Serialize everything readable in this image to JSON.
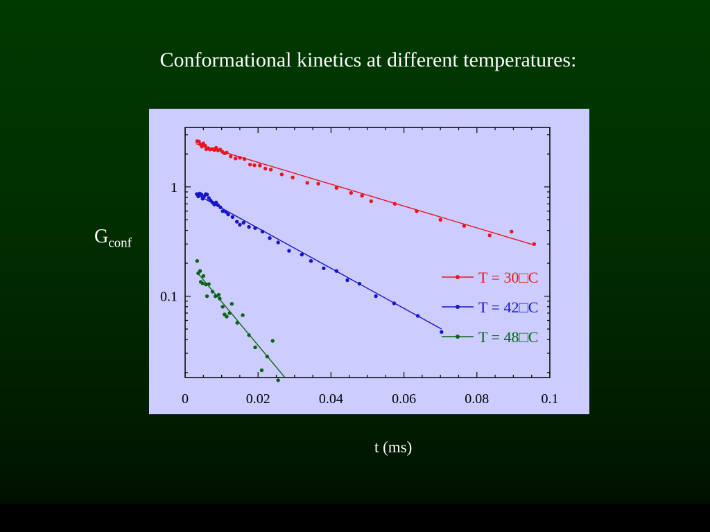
{
  "slide": {
    "title": "Conformational kinetics at different temperatures:"
  },
  "chart_data": {
    "type": "scatter",
    "title": "",
    "xlabel": "t (ms)",
    "ylabel": {
      "main": "G",
      "sub": "conf"
    },
    "xlim": [
      0,
      0.1
    ],
    "ylim": [
      0.018,
      3.5
    ],
    "yscale": "log",
    "x_ticks": [
      {
        "value": 0,
        "label": "0"
      },
      {
        "value": 0.02,
        "label": "0.02"
      },
      {
        "value": 0.04,
        "label": "0.04"
      },
      {
        "value": 0.06,
        "label": "0.06"
      },
      {
        "value": 0.08,
        "label": "0.08"
      },
      {
        "value": 0.1,
        "label": "0.1"
      }
    ],
    "y_ticks": [
      {
        "value": 0.1,
        "label": "0.1"
      },
      {
        "value": 1,
        "label": "1"
      }
    ],
    "grid": false,
    "legend_position": "right",
    "series": [
      {
        "name": "T = 30□C",
        "color": "#e8141e",
        "points": [
          [
            0.0033,
            2.62
          ],
          [
            0.0038,
            2.6
          ],
          [
            0.0042,
            2.45
          ],
          [
            0.0046,
            2.34
          ],
          [
            0.005,
            2.5
          ],
          [
            0.0055,
            2.38
          ],
          [
            0.0058,
            2.22
          ],
          [
            0.0063,
            2.26
          ],
          [
            0.0068,
            2.2
          ],
          [
            0.0075,
            2.22
          ],
          [
            0.008,
            2.18
          ],
          [
            0.0085,
            2.28
          ],
          [
            0.009,
            2.16
          ],
          [
            0.0096,
            2.2
          ],
          [
            0.0102,
            2.1
          ],
          [
            0.0108,
            2.03
          ],
          [
            0.0114,
            2.06
          ],
          [
            0.0125,
            1.9
          ],
          [
            0.0138,
            1.82
          ],
          [
            0.015,
            1.85
          ],
          [
            0.0163,
            1.8
          ],
          [
            0.0178,
            1.6
          ],
          [
            0.019,
            1.58
          ],
          [
            0.0205,
            1.57
          ],
          [
            0.022,
            1.47
          ],
          [
            0.0235,
            1.44
          ],
          [
            0.0265,
            1.3
          ],
          [
            0.0295,
            1.22
          ],
          [
            0.0335,
            1.09
          ],
          [
            0.0365,
            1.07
          ],
          [
            0.0415,
            0.98
          ],
          [
            0.0455,
            0.88
          ],
          [
            0.0485,
            0.83
          ],
          [
            0.051,
            0.74
          ],
          [
            0.0575,
            0.7
          ],
          [
            0.0635,
            0.6
          ],
          [
            0.07,
            0.5
          ],
          [
            0.0765,
            0.44
          ],
          [
            0.0835,
            0.36
          ],
          [
            0.0895,
            0.39
          ],
          [
            0.0957,
            0.3
          ]
        ],
        "fit": [
          [
            0.003,
            2.48
          ],
          [
            0.0955,
            0.295
          ]
        ]
      },
      {
        "name": "T = 42□C",
        "color": "#1414c8",
        "points": [
          [
            0.0032,
            0.86
          ],
          [
            0.0036,
            0.82
          ],
          [
            0.004,
            0.87
          ],
          [
            0.0045,
            0.85
          ],
          [
            0.0048,
            0.78
          ],
          [
            0.0052,
            0.82
          ],
          [
            0.0057,
            0.86
          ],
          [
            0.006,
            0.85
          ],
          [
            0.0065,
            0.79
          ],
          [
            0.007,
            0.75
          ],
          [
            0.0075,
            0.72
          ],
          [
            0.008,
            0.69
          ],
          [
            0.0085,
            0.72
          ],
          [
            0.009,
            0.68
          ],
          [
            0.0097,
            0.65
          ],
          [
            0.0103,
            0.6
          ],
          [
            0.0112,
            0.59
          ],
          [
            0.0118,
            0.56
          ],
          [
            0.013,
            0.53
          ],
          [
            0.0142,
            0.48
          ],
          [
            0.015,
            0.45
          ],
          [
            0.016,
            0.47
          ],
          [
            0.0175,
            0.43
          ],
          [
            0.0192,
            0.42
          ],
          [
            0.0212,
            0.39
          ],
          [
            0.0232,
            0.34
          ],
          [
            0.0255,
            0.31
          ],
          [
            0.0285,
            0.26
          ],
          [
            0.032,
            0.24
          ],
          [
            0.0345,
            0.21
          ],
          [
            0.038,
            0.18
          ],
          [
            0.0415,
            0.17
          ],
          [
            0.0445,
            0.14
          ],
          [
            0.0478,
            0.13
          ],
          [
            0.0523,
            0.1
          ],
          [
            0.0573,
            0.086
          ],
          [
            0.0638,
            0.066
          ],
          [
            0.0703,
            0.047
          ]
        ],
        "fit": [
          [
            0.003,
            0.86
          ],
          [
            0.0703,
            0.05
          ]
        ]
      },
      {
        "name": "T = 48□C",
        "color": "#0a6414",
        "points": [
          [
            0.0033,
            0.21
          ],
          [
            0.0036,
            0.162
          ],
          [
            0.0041,
            0.17
          ],
          [
            0.0043,
            0.135
          ],
          [
            0.0048,
            0.131
          ],
          [
            0.005,
            0.153
          ],
          [
            0.0057,
            0.128
          ],
          [
            0.006,
            0.1
          ],
          [
            0.0065,
            0.129
          ],
          [
            0.0075,
            0.11
          ],
          [
            0.0083,
            0.1
          ],
          [
            0.0092,
            0.103
          ],
          [
            0.0095,
            0.095
          ],
          [
            0.0103,
            0.08
          ],
          [
            0.0108,
            0.068
          ],
          [
            0.0114,
            0.065
          ],
          [
            0.0122,
            0.07
          ],
          [
            0.0128,
            0.085
          ],
          [
            0.0143,
            0.057
          ],
          [
            0.0158,
            0.067
          ],
          [
            0.0175,
            0.044
          ],
          [
            0.0192,
            0.034
          ],
          [
            0.021,
            0.021
          ],
          [
            0.0225,
            0.028
          ],
          [
            0.024,
            0.039
          ],
          [
            0.0255,
            0.017
          ]
        ],
        "fit": [
          [
            0.0033,
            0.165
          ],
          [
            0.029,
            0.0155
          ]
        ]
      }
    ]
  }
}
